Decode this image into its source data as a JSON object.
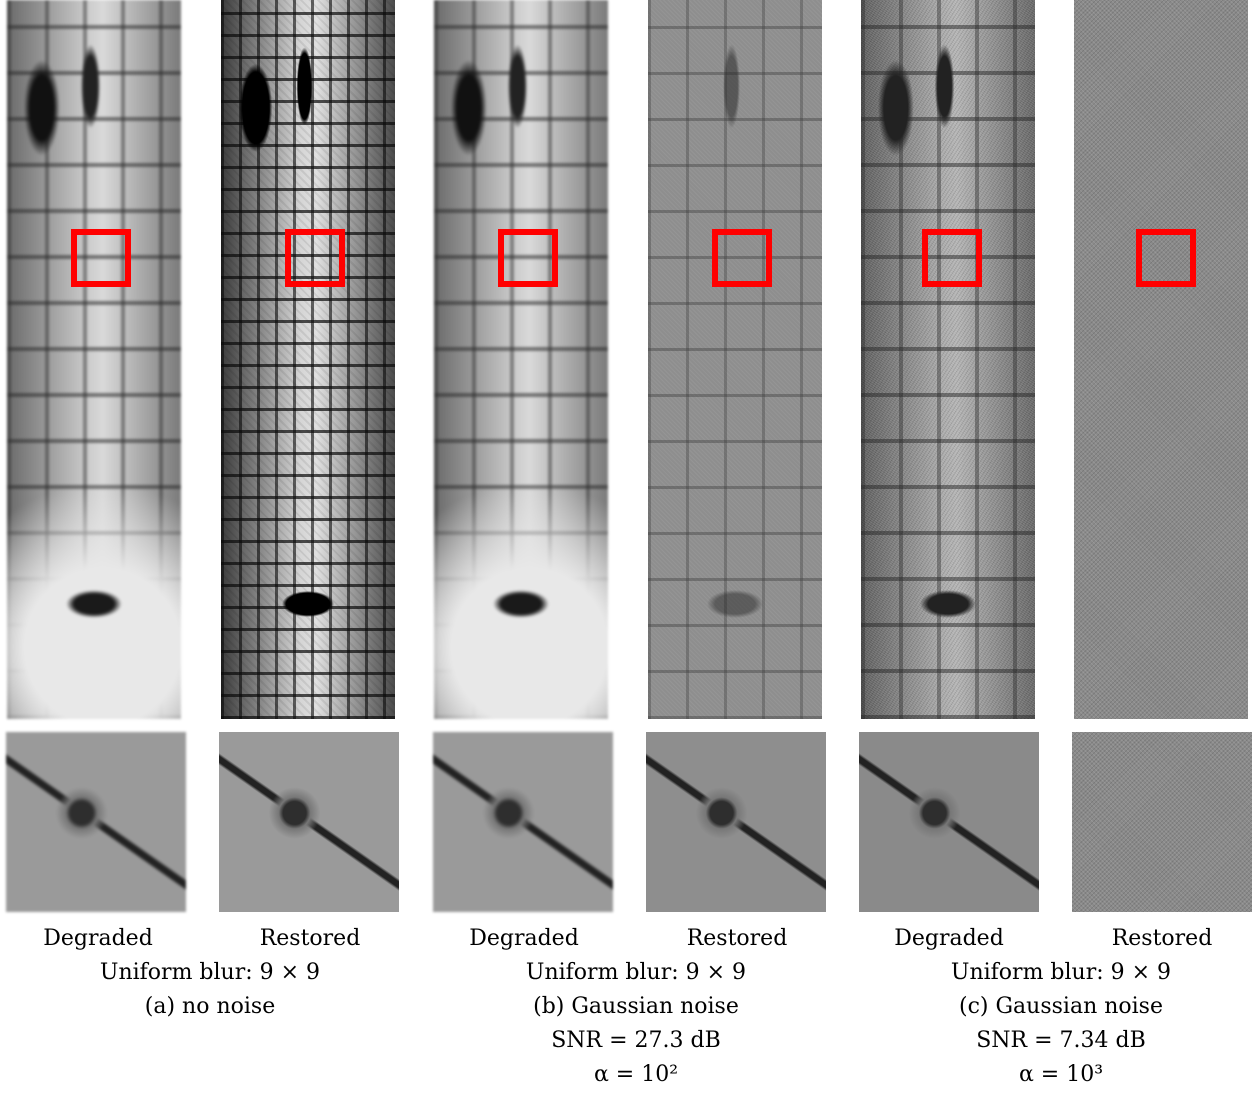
{
  "figure": {
    "panels": [
      {
        "id": "a",
        "images": [
          {
            "label": "Degraded",
            "texture": "blurred-aerial"
          },
          {
            "label": "Restored",
            "texture": "sharp-aerial"
          }
        ],
        "caption_lines": [
          "Uniform blur: 9 × 9",
          "(a) no noise"
        ]
      },
      {
        "id": "b",
        "images": [
          {
            "label": "Degraded",
            "texture": "blurred-aerial"
          },
          {
            "label": "Restored",
            "texture": "low-contrast-aerial"
          }
        ],
        "caption_lines": [
          "Uniform blur: 9 × 9",
          "(b) Gaussian noise",
          "SNR = 27.3 dB",
          "α = 10²"
        ]
      },
      {
        "id": "c",
        "images": [
          {
            "label": "Degraded",
            "texture": "noisy-aerial"
          },
          {
            "label": "Restored",
            "texture": "flat-gray"
          }
        ],
        "caption_lines": [
          "Uniform blur: 9 × 9",
          "(c) Gaussian noise",
          "SNR = 7.34 dB",
          "α = 10³"
        ]
      }
    ],
    "roi_color": "#ff0000"
  }
}
